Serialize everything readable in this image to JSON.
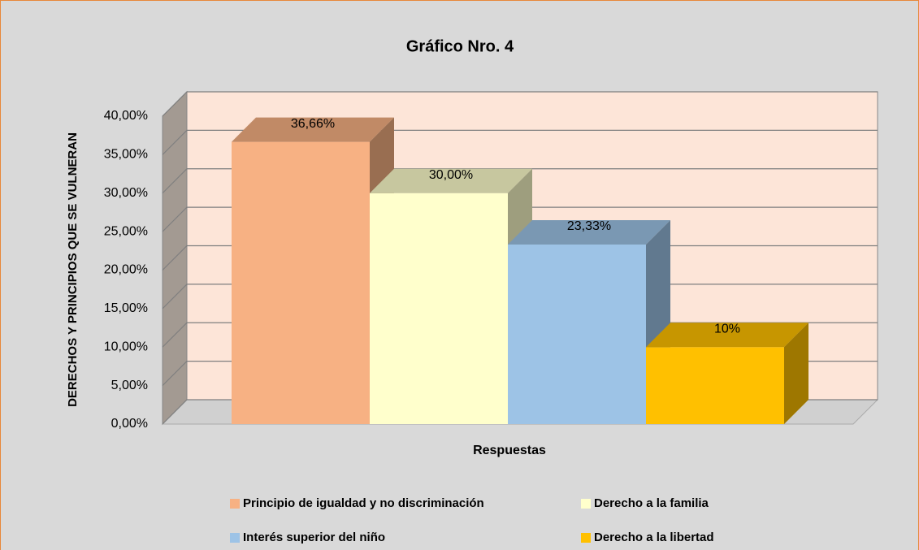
{
  "chart_data": {
    "type": "bar3d",
    "title": "Gráfico Nro. 4",
    "y_label": "DERECHOS Y PRINCIPIOS QUE SE VULNERAN",
    "x_label": "Respuestas",
    "series": [
      {
        "name": "Principio de igualdad y no discriminación",
        "color": "#f7b183",
        "values": [
          36.66
        ],
        "value_labels": [
          "36,66%"
        ]
      },
      {
        "name": "Derecho a la familia",
        "color": "#ffffcc",
        "values": [
          30
        ],
        "value_labels": [
          "30,00%"
        ]
      },
      {
        "name": "Interés superior del niño",
        "color": "#9dc3e6",
        "values": [
          23.33
        ],
        "value_labels": [
          "23,33%"
        ]
      },
      {
        "name": "Derecho a la libertad",
        "color": "#ffc000",
        "values": [
          10
        ],
        "value_labels": [
          "10%"
        ]
      }
    ],
    "ylim": [
      0,
      40
    ],
    "yticks": [
      {
        "value": 0,
        "label": "0,00%"
      },
      {
        "value": 5,
        "label": "5,00%"
      },
      {
        "value": 10,
        "label": "10,00%"
      },
      {
        "value": 15,
        "label": "15,00%"
      },
      {
        "value": 20,
        "label": "20,00%"
      },
      {
        "value": 25,
        "label": "25,00%"
      },
      {
        "value": 30,
        "label": "30,00%"
      },
      {
        "value": 35,
        "label": "35,00%"
      },
      {
        "value": 40,
        "label": "40,00%"
      }
    ],
    "grid": true,
    "legend": "bottom"
  }
}
